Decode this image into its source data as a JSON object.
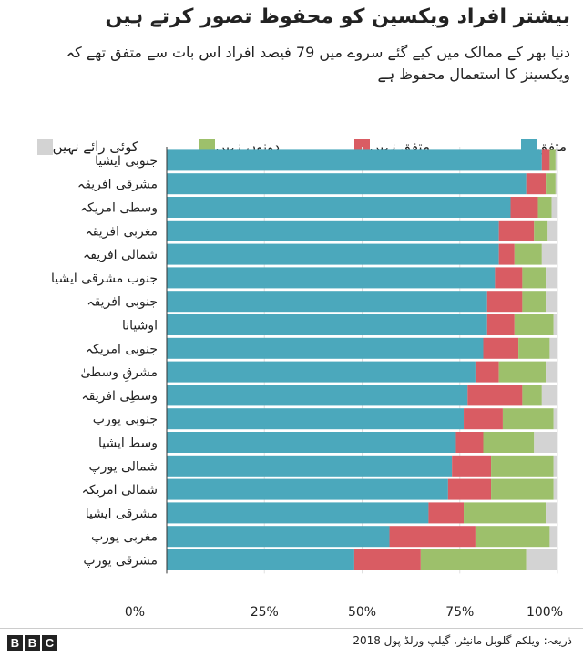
{
  "title": "بیشتر افراد ویکسین کو محفوظ تصور کرتے ہیں",
  "subtitle": "دنیا بھر کے ممالک میں کیے گئے سروے میں 79 فیصد افراد اس بات سے متفق تھے کہ ویکسینز کا استعمال محفوظ ہے",
  "source": "ذریعہ: ویلکم گلوبل مانیٹر، گیلپ ورلڈ پول 2018",
  "logo": [
    "B",
    "B",
    "C"
  ],
  "colors": {
    "agree": "#4ba8bc",
    "disagree": "#d95c63",
    "neither": "#9dc06b",
    "no_opinion": "#d3d3d3"
  },
  "chart_data": {
    "type": "bar",
    "orientation": "horizontal",
    "stacked": true,
    "title": "بیشتر افراد ویکسین کو محفوظ تصور کرتے ہیں",
    "xlim": [
      0,
      100
    ],
    "xticks": [
      "0%",
      "25%",
      "50%",
      "75%",
      "100%"
    ],
    "legend_position": "top",
    "categories": [
      "جنوبی ایشیا",
      "مشرقی افریقہ",
      "وسطی امریکہ",
      "مغربی افریقہ",
      "شمالی افریقہ",
      "جنوب مشرقی ایشیا",
      "جنوبی افریقہ",
      "اوشیانا",
      "جنوبی امریکہ",
      "مشرقِ وسطیٰ",
      "وسطِی افریقہ",
      "جنوبی یورپ",
      "وسط ایشیا",
      "شمالی یورپ",
      "شمالی امریکہ",
      "مشرقی ایشیا",
      "مغربی یورپ",
      "مشرقی یورپ"
    ],
    "series": [
      {
        "name": "متفق",
        "key": "agree",
        "values": [
          96,
          92,
          88,
          85,
          85,
          84,
          82,
          82,
          81,
          79,
          77,
          76,
          74,
          73,
          72,
          67,
          57,
          48
        ]
      },
      {
        "name": "متفق نہیں",
        "key": "disagree",
        "values": [
          2,
          5,
          7,
          9,
          4,
          7,
          9,
          7,
          9,
          6,
          14,
          10,
          7,
          10,
          11,
          9,
          22,
          17
        ]
      },
      {
        "name": "دونوں نہیں",
        "key": "neither",
        "values": [
          1.5,
          2.5,
          3.5,
          3.5,
          7,
          6,
          6,
          10,
          8,
          12,
          5,
          13,
          13,
          16,
          16,
          21,
          19,
          27
        ]
      },
      {
        "name": "کوئی رائے نہیں",
        "key": "no_opinion",
        "values": [
          0.5,
          0.5,
          1.5,
          2.5,
          4,
          3,
          3,
          1,
          2,
          3,
          4,
          1,
          6,
          1,
          1,
          3,
          2,
          8
        ]
      }
    ]
  }
}
